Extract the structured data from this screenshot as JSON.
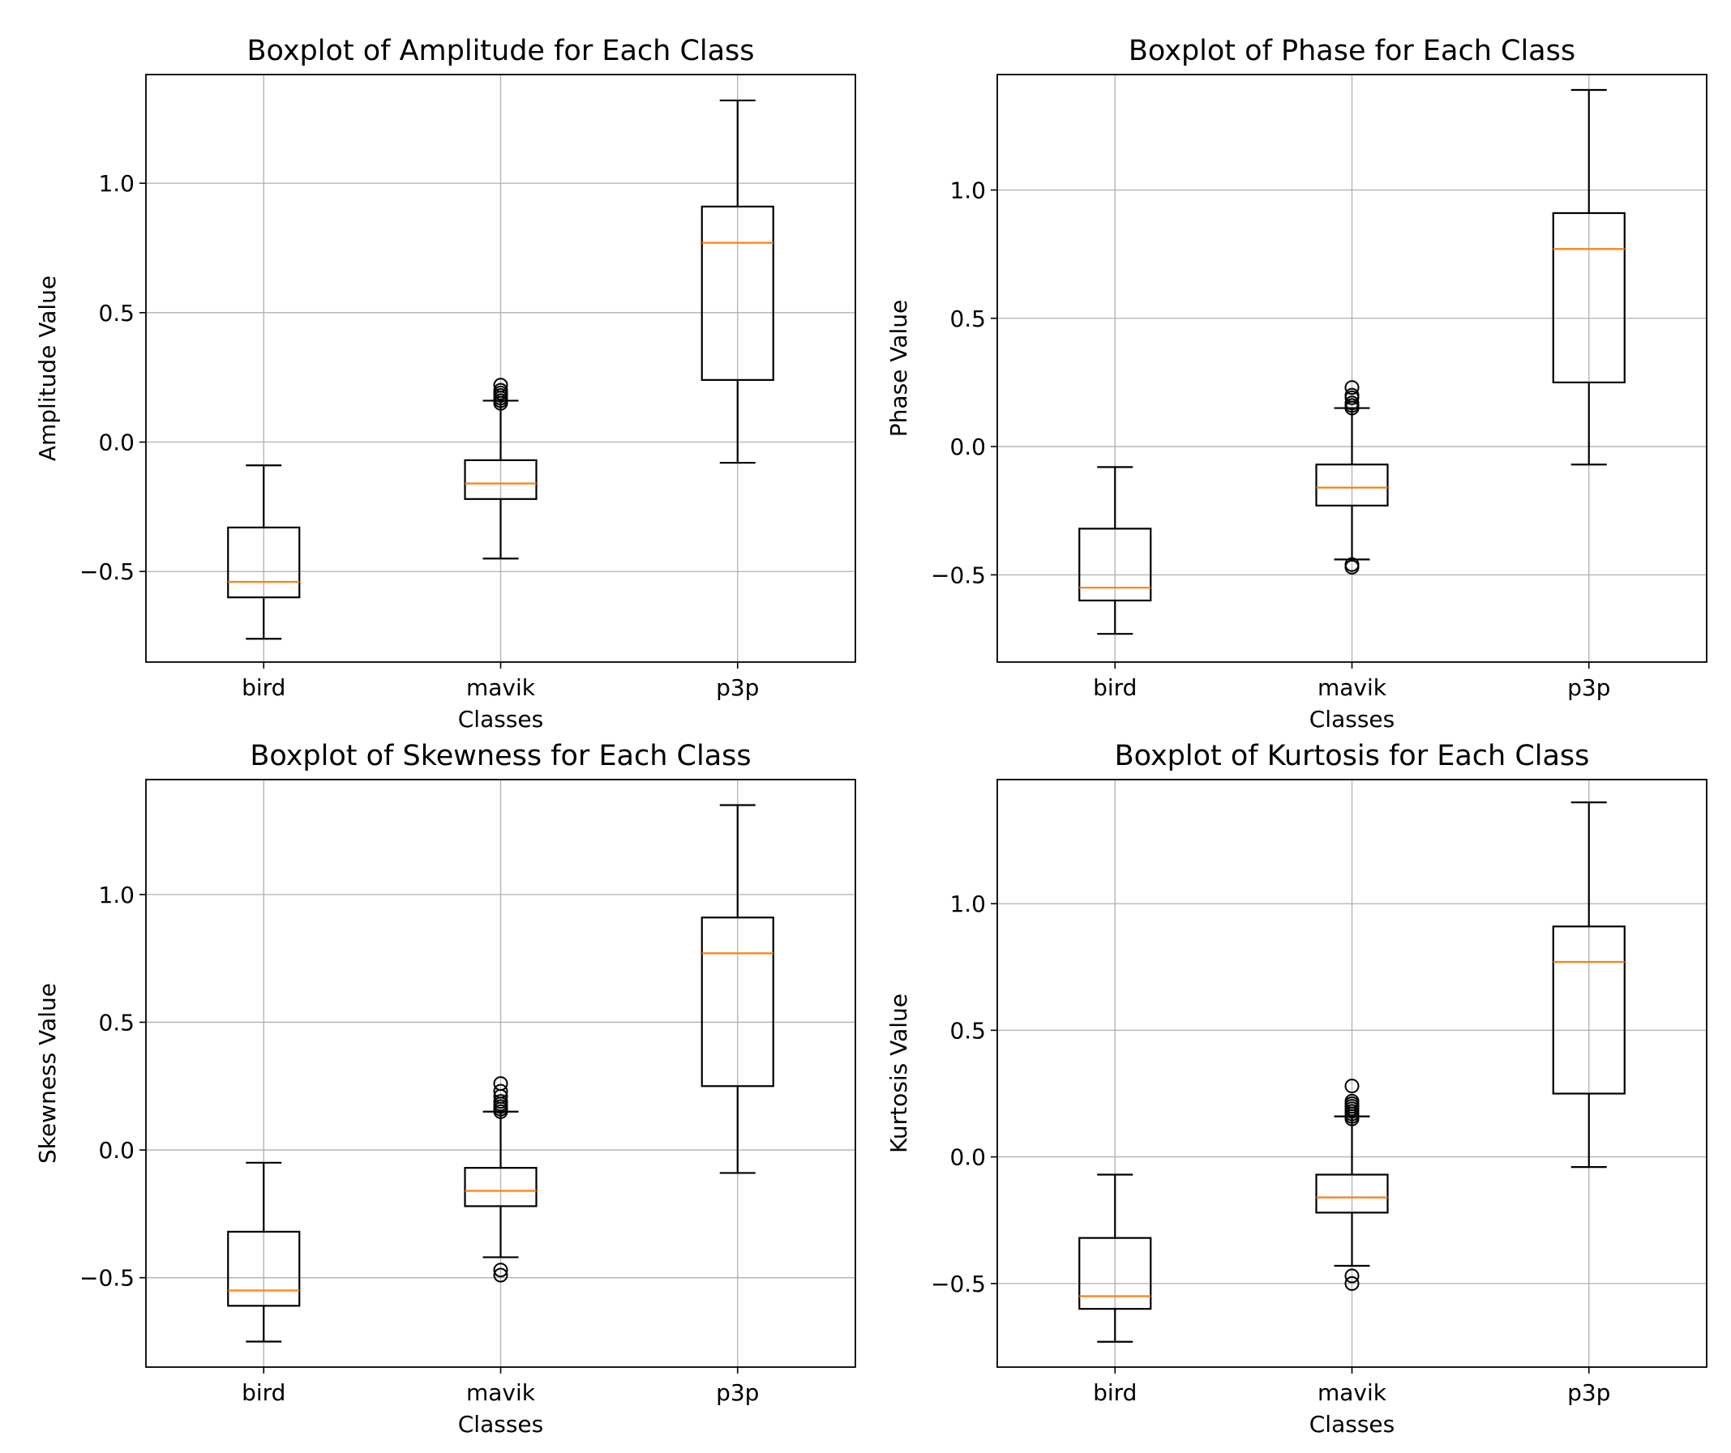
{
  "colors": {
    "median": "#ff7f0e",
    "box": "#000000",
    "grid": "#b0b0b0"
  },
  "chart_data": [
    {
      "type": "box",
      "title": "Boxplot of Amplitude for Each Class",
      "xlabel": "Classes",
      "ylabel": "Amplitude Value",
      "ylim": [
        -0.85,
        1.42
      ],
      "yticks": [
        -0.5,
        0.0,
        0.5,
        1.0
      ],
      "ytick_labels": [
        "−0.5",
        "0.0",
        "0.5",
        "1.0"
      ],
      "grid": true,
      "categories": [
        "bird",
        "mavik",
        "p3p"
      ],
      "boxes": [
        {
          "whislo": -0.76,
          "q1": -0.6,
          "med": -0.54,
          "q3": -0.33,
          "whishi": -0.09,
          "fliers": []
        },
        {
          "whislo": -0.45,
          "q1": -0.22,
          "med": -0.16,
          "q3": -0.07,
          "whishi": 0.16,
          "fliers": [
            0.15,
            0.16,
            0.17,
            0.18,
            0.19,
            0.2,
            0.22
          ]
        },
        {
          "whislo": -0.08,
          "q1": 0.24,
          "med": 0.77,
          "q3": 0.91,
          "whishi": 1.32,
          "fliers": []
        }
      ]
    },
    {
      "type": "box",
      "title": "Boxplot of Phase for Each Class",
      "xlabel": "Classes",
      "ylabel": "Phase Value",
      "ylim": [
        -0.84,
        1.45
      ],
      "yticks": [
        -0.5,
        0.0,
        0.5,
        1.0
      ],
      "ytick_labels": [
        "−0.5",
        "0.0",
        "0.5",
        "1.0"
      ],
      "grid": true,
      "categories": [
        "bird",
        "mavik",
        "p3p"
      ],
      "boxes": [
        {
          "whislo": -0.73,
          "q1": -0.6,
          "med": -0.55,
          "q3": -0.32,
          "whishi": -0.08,
          "fliers": []
        },
        {
          "whislo": -0.44,
          "q1": -0.23,
          "med": -0.16,
          "q3": -0.07,
          "whishi": 0.15,
          "fliers": [
            0.15,
            0.16,
            0.17,
            0.19,
            0.2,
            0.23,
            -0.46,
            -0.47
          ]
        },
        {
          "whislo": -0.07,
          "q1": 0.25,
          "med": 0.77,
          "q3": 0.91,
          "whishi": 1.39,
          "fliers": []
        }
      ]
    },
    {
      "type": "box",
      "title": "Boxplot of Skewness for Each Class",
      "xlabel": "Classes",
      "ylabel": "Skewness Value",
      "ylim": [
        -0.85,
        1.45
      ],
      "yticks": [
        -0.5,
        0.0,
        0.5,
        1.0
      ],
      "ytick_labels": [
        "−0.5",
        "0.0",
        "0.5",
        "1.0"
      ],
      "grid": true,
      "categories": [
        "bird",
        "mavik",
        "p3p"
      ],
      "boxes": [
        {
          "whislo": -0.75,
          "q1": -0.61,
          "med": -0.55,
          "q3": -0.32,
          "whishi": -0.05,
          "fliers": []
        },
        {
          "whislo": -0.42,
          "q1": -0.22,
          "med": -0.16,
          "q3": -0.07,
          "whishi": 0.15,
          "fliers": [
            0.15,
            0.16,
            0.17,
            0.18,
            0.19,
            0.21,
            0.23,
            0.26,
            -0.47,
            -0.49
          ]
        },
        {
          "whislo": -0.09,
          "q1": 0.25,
          "med": 0.77,
          "q3": 0.91,
          "whishi": 1.35,
          "fliers": []
        }
      ]
    },
    {
      "type": "box",
      "title": "Boxplot of Kurtosis for Each Class",
      "xlabel": "Classes",
      "ylabel": "Kurtosis Value",
      "ylim": [
        -0.83,
        1.49
      ],
      "yticks": [
        -0.5,
        0.0,
        0.5,
        1.0
      ],
      "ytick_labels": [
        "−0.5",
        "0.0",
        "0.5",
        "1.0"
      ],
      "grid": true,
      "categories": [
        "bird",
        "mavik",
        "p3p"
      ],
      "boxes": [
        {
          "whislo": -0.73,
          "q1": -0.6,
          "med": -0.55,
          "q3": -0.32,
          "whishi": -0.07,
          "fliers": []
        },
        {
          "whislo": -0.43,
          "q1": -0.22,
          "med": -0.16,
          "q3": -0.07,
          "whishi": 0.16,
          "fliers": [
            0.15,
            0.16,
            0.17,
            0.18,
            0.19,
            0.2,
            0.21,
            0.22,
            0.28,
            -0.47,
            -0.5
          ]
        },
        {
          "whislo": -0.04,
          "q1": 0.25,
          "med": 0.77,
          "q3": 0.91,
          "whishi": 1.4,
          "fliers": []
        }
      ]
    }
  ]
}
